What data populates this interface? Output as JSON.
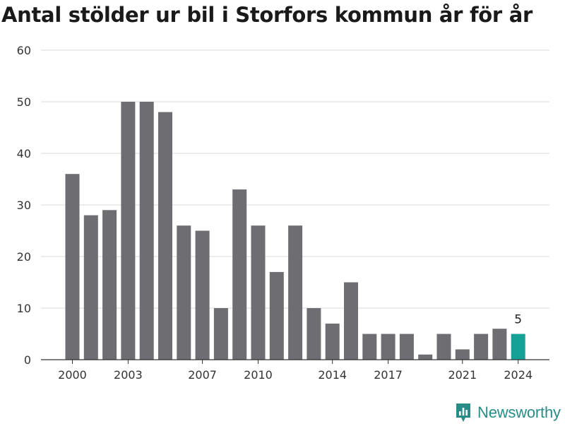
{
  "title": "Antal stölder ur bil i Storfors kommun år för år",
  "brand": {
    "name": "Newsworthy",
    "icon": "newsworthy-logo-icon",
    "color": "#2a8c86"
  },
  "chart_data": {
    "type": "bar",
    "title": "Antal stölder ur bil i Storfors kommun år för år",
    "x": [
      2000,
      2001,
      2002,
      2003,
      2004,
      2005,
      2006,
      2007,
      2008,
      2009,
      2010,
      2011,
      2012,
      2013,
      2014,
      2015,
      2016,
      2017,
      2018,
      2019,
      2020,
      2021,
      2022,
      2023,
      2024
    ],
    "values": [
      36,
      28,
      29,
      50,
      50,
      48,
      26,
      25,
      10,
      33,
      26,
      17,
      26,
      10,
      7,
      15,
      5,
      5,
      5,
      1,
      5,
      2,
      5,
      6,
      5
    ],
    "ylim": [
      0,
      60
    ],
    "yticks": [
      0,
      10,
      20,
      30,
      40,
      50,
      60
    ],
    "xtick_labels": [
      2000,
      2003,
      2007,
      2010,
      2014,
      2017,
      2021,
      2024
    ],
    "highlight": {
      "year": 2024,
      "value": 5,
      "label": "5"
    },
    "grid": true,
    "colors": {
      "bar": "#6e6d72",
      "highlight": "#15a196",
      "grid": "#d9d9d9",
      "axis": "#333333"
    }
  }
}
